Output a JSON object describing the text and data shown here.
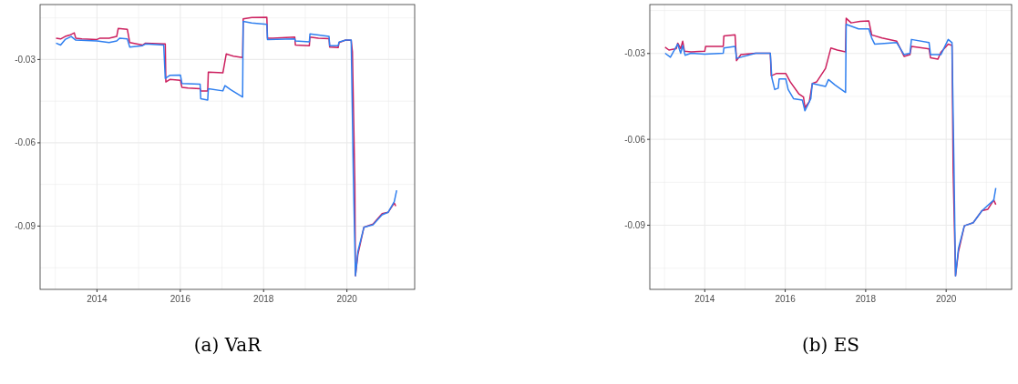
{
  "chart_data": [
    {
      "type": "line",
      "title": "(a) VaR",
      "xlim": [
        2012.634,
        2021.627
      ],
      "ylim": [
        -0.1128,
        -0.0102
      ],
      "xticks": [
        {
          "value": 2013,
          "label": null
        },
        2014,
        {
          "value": 2015,
          "label": null
        },
        2016,
        {
          "value": 2017,
          "label": null
        },
        2018,
        {
          "value": 2019,
          "label": null
        },
        2020,
        {
          "value": 2021,
          "label": null
        }
      ],
      "yticks": [
        {
          "value": -0.015,
          "label": null
        },
        -0.03,
        {
          "value": -0.045,
          "label": null
        },
        -0.06,
        {
          "value": -0.075,
          "label": null
        },
        -0.09,
        {
          "value": -0.105,
          "label": null
        }
      ],
      "grid": true,
      "line_style": "solid",
      "series": [
        {
          "color": "#cc1f5e",
          "x": [
            2013.017,
            2013.126,
            2013.235,
            2013.345,
            2013.454,
            2013.49,
            2013.636,
            2014.0,
            2014.073,
            2014.291,
            2014.473,
            2014.51,
            2014.728,
            2014.787,
            2015.092,
            2015.165,
            2015.639,
            2015.653,
            2015.748,
            2016.003,
            2016.039,
            2016.185,
            2016.476,
            2016.491,
            2016.658,
            2016.673,
            2017.022,
            2017.103,
            2017.277,
            2017.496,
            2017.51,
            2017.714,
            2018.078,
            2018.093,
            2018.224,
            2018.748,
            2018.763,
            2019.098,
            2019.113,
            2019.317,
            2019.571,
            2019.586,
            2019.79,
            2019.812,
            2019.972,
            2020.103,
            2020.132,
            2020.19,
            2020.205,
            2020.263,
            2020.409,
            2020.627,
            2020.846,
            2020.992,
            2021.137,
            2021.173
          ],
          "values": [
            -0.0223,
            -0.0226,
            -0.0217,
            -0.0212,
            -0.0204,
            -0.0223,
            -0.0226,
            -0.0228,
            -0.0223,
            -0.0223,
            -0.0217,
            -0.0188,
            -0.0191,
            -0.0239,
            -0.0248,
            -0.0241,
            -0.0244,
            -0.0381,
            -0.0372,
            -0.0375,
            -0.04,
            -0.0403,
            -0.0405,
            -0.0413,
            -0.0413,
            -0.0345,
            -0.0348,
            -0.028,
            -0.0288,
            -0.0293,
            -0.0154,
            -0.0149,
            -0.0148,
            -0.0223,
            -0.0223,
            -0.0219,
            -0.0248,
            -0.025,
            -0.0219,
            -0.0223,
            -0.0225,
            -0.0255,
            -0.0257,
            -0.0239,
            -0.023,
            -0.0231,
            -0.0272,
            -0.0741,
            -0.1079,
            -0.1003,
            -0.0904,
            -0.0893,
            -0.0855,
            -0.085,
            -0.0817,
            -0.0828
          ]
        },
        {
          "color": "#2f7fef",
          "x": [
            2013.017,
            2013.126,
            2013.235,
            2013.381,
            2013.49,
            2014.0,
            2014.291,
            2014.473,
            2014.546,
            2014.728,
            2014.787,
            2015.092,
            2015.165,
            2015.602,
            2015.639,
            2015.748,
            2016.003,
            2016.039,
            2016.476,
            2016.491,
            2016.658,
            2016.673,
            2017.022,
            2017.073,
            2017.204,
            2017.496,
            2017.51,
            2017.714,
            2018.078,
            2018.093,
            2018.748,
            2018.763,
            2019.098,
            2019.113,
            2019.571,
            2019.586,
            2019.79,
            2019.812,
            2019.972,
            2020.103,
            2020.154,
            2020.205,
            2020.263,
            2020.409,
            2020.627,
            2020.846,
            2020.992,
            2021.137,
            2021.195
          ],
          "values": [
            -0.0241,
            -0.0248,
            -0.0228,
            -0.0217,
            -0.023,
            -0.0233,
            -0.0239,
            -0.0233,
            -0.0223,
            -0.0226,
            -0.0255,
            -0.025,
            -0.0244,
            -0.0248,
            -0.0368,
            -0.0357,
            -0.0356,
            -0.0386,
            -0.0389,
            -0.0441,
            -0.0446,
            -0.0405,
            -0.0413,
            -0.0394,
            -0.0408,
            -0.0435,
            -0.0163,
            -0.0168,
            -0.0173,
            -0.0228,
            -0.0226,
            -0.0233,
            -0.0236,
            -0.0208,
            -0.0217,
            -0.025,
            -0.025,
            -0.0237,
            -0.023,
            -0.023,
            -0.0714,
            -0.1079,
            -0.0992,
            -0.0904,
            -0.0895,
            -0.0859,
            -0.085,
            -0.0812,
            -0.0771
          ]
        }
      ]
    },
    {
      "type": "line",
      "title": "(b) ES",
      "xlim": [
        2012.634,
        2021.627
      ],
      "ylim": [
        -0.1124,
        -0.0129
      ],
      "xticks": [
        {
          "value": 2013,
          "label": null
        },
        2014,
        {
          "value": 2015,
          "label": null
        },
        2016,
        {
          "value": 2017,
          "label": null
        },
        2018,
        {
          "value": 2019,
          "label": null
        },
        2020,
        {
          "value": 2021,
          "label": null
        }
      ],
      "yticks": [
        {
          "value": -0.015,
          "label": null
        },
        -0.03,
        {
          "value": -0.045,
          "label": null
        },
        -0.06,
        {
          "value": -0.075,
          "label": null
        },
        -0.09,
        {
          "value": -0.105,
          "label": null
        }
      ],
      "grid": true,
      "line_style": "solid",
      "series": [
        {
          "color": "#cc1f5e",
          "x": [
            2013.014,
            2013.109,
            2013.291,
            2013.328,
            2013.401,
            2013.452,
            2013.496,
            2013.657,
            2014.0,
            2014.022,
            2014.46,
            2014.475,
            2014.753,
            2014.789,
            2014.899,
            2015.264,
            2015.629,
            2015.651,
            2015.776,
            2016.015,
            2016.124,
            2016.344,
            2016.454,
            2016.49,
            2016.599,
            2016.673,
            2016.783,
            2017.002,
            2017.134,
            2017.295,
            2017.5,
            2017.515,
            2017.639,
            2017.858,
            2018.077,
            2018.15,
            2018.406,
            2018.771,
            2018.954,
            2019.1,
            2019.137,
            2019.575,
            2019.612,
            2019.794,
            2019.868,
            2020.051,
            2020.145,
            2020.175,
            2020.233,
            2020.306,
            2020.452,
            2020.672,
            2020.891,
            2021.037,
            2021.183,
            2021.234
          ],
          "values": [
            -0.0278,
            -0.0288,
            -0.0283,
            -0.0264,
            -0.0283,
            -0.0257,
            -0.0292,
            -0.0294,
            -0.0292,
            -0.0275,
            -0.0275,
            -0.0239,
            -0.0235,
            -0.0325,
            -0.0304,
            -0.0299,
            -0.0299,
            -0.0378,
            -0.037,
            -0.037,
            -0.0399,
            -0.0442,
            -0.0452,
            -0.0489,
            -0.0468,
            -0.0405,
            -0.0399,
            -0.0352,
            -0.0281,
            -0.0288,
            -0.0294,
            -0.0177,
            -0.0193,
            -0.0188,
            -0.0186,
            -0.0235,
            -0.0246,
            -0.0257,
            -0.031,
            -0.0304,
            -0.0275,
            -0.0284,
            -0.0315,
            -0.032,
            -0.0296,
            -0.0267,
            -0.0272,
            -0.0717,
            -0.1077,
            -0.0992,
            -0.0902,
            -0.0891,
            -0.0849,
            -0.0844,
            -0.0812,
            -0.0828
          ]
        },
        {
          "color": "#2f7fef",
          "x": [
            2013.014,
            2013.146,
            2013.328,
            2013.401,
            2013.452,
            2013.511,
            2013.657,
            2014.0,
            2014.46,
            2014.475,
            2014.753,
            2014.789,
            2014.899,
            2015.264,
            2015.629,
            2015.666,
            2015.739,
            2015.826,
            2015.849,
            2016.015,
            2016.073,
            2016.206,
            2016.425,
            2016.49,
            2016.636,
            2016.673,
            2017.002,
            2017.075,
            2017.237,
            2017.5,
            2017.515,
            2017.822,
            2018.077,
            2018.15,
            2018.223,
            2018.771,
            2018.954,
            2019.1,
            2019.137,
            2019.575,
            2019.612,
            2019.868,
            2020.051,
            2020.145,
            2020.196,
            2020.233,
            2020.306,
            2020.452,
            2020.672,
            2020.891,
            2021.183,
            2021.234
          ],
          "values": [
            -0.0299,
            -0.0313,
            -0.0267,
            -0.0299,
            -0.0272,
            -0.0306,
            -0.0299,
            -0.0302,
            -0.0299,
            -0.0281,
            -0.0275,
            -0.0317,
            -0.0313,
            -0.0299,
            -0.0299,
            -0.0384,
            -0.0426,
            -0.0421,
            -0.0389,
            -0.0389,
            -0.0426,
            -0.0458,
            -0.0463,
            -0.05,
            -0.0458,
            -0.0405,
            -0.0415,
            -0.0391,
            -0.041,
            -0.0436,
            -0.0198,
            -0.0214,
            -0.0214,
            -0.0246,
            -0.0267,
            -0.0262,
            -0.0304,
            -0.0299,
            -0.0251,
            -0.0262,
            -0.0304,
            -0.0304,
            -0.0251,
            -0.0262,
            -0.0712,
            -0.1077,
            -0.0981,
            -0.0902,
            -0.0891,
            -0.0849,
            -0.0812,
            -0.077
          ]
        }
      ]
    }
  ]
}
